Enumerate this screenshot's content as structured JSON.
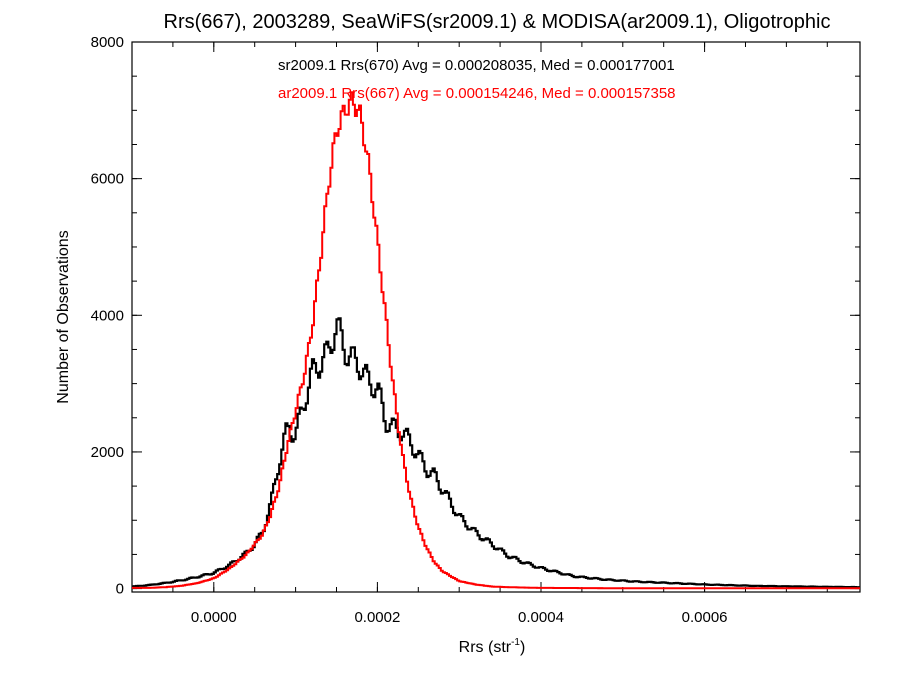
{
  "chart_data": {
    "type": "line",
    "title": "Rrs(667), 2003289, SeaWiFS(sr2009.1) & MODISA(ar2009.1), Oligotrophic",
    "xlabel": "Rrs (str",
    "xlabel_sup": "-1",
    "xlabel_end": ")",
    "ylabel": "Number of Observations",
    "xlim": [
      -0.0001,
      0.00079
    ],
    "ylim": [
      -50,
      8000
    ],
    "xticks": [
      0.0,
      0.0002,
      0.0004,
      0.0006
    ],
    "xtick_labels": [
      "0.0000",
      "0.0002",
      "0.0004",
      "0.0006"
    ],
    "yticks": [
      0,
      2000,
      4000,
      6000,
      8000
    ],
    "ytick_labels": [
      "0",
      "2000",
      "4000",
      "6000",
      "8000"
    ],
    "grid": false,
    "legend_position": "top-center",
    "series": [
      {
        "name": "sr2009.1 Rrs(670) Avg = 0.000208035, Med = 0.000177001",
        "color": "#000000",
        "points": [
          [
            -0.0001,
            30
          ],
          [
            -8e-05,
            50
          ],
          [
            -6e-05,
            80
          ],
          [
            -4e-05,
            120
          ],
          [
            -2e-05,
            170
          ],
          [
            0.0,
            230
          ],
          [
            2e-05,
            350
          ],
          [
            4e-05,
            520
          ],
          [
            5e-05,
            650
          ],
          [
            6e-05,
            830
          ],
          [
            7e-05,
            1250
          ],
          [
            8e-05,
            1850
          ],
          [
            9e-05,
            2350
          ],
          [
            0.0001,
            2250
          ],
          [
            0.00011,
            2700
          ],
          [
            0.00012,
            3150
          ],
          [
            0.00013,
            3300
          ],
          [
            0.00014,
            3450
          ],
          [
            0.00015,
            3870
          ],
          [
            0.00016,
            3500
          ],
          [
            0.00017,
            3350
          ],
          [
            0.00018,
            3250
          ],
          [
            0.00019,
            3000
          ],
          [
            0.0002,
            2950
          ],
          [
            0.00021,
            2450
          ],
          [
            0.00022,
            2350
          ],
          [
            0.00023,
            2300
          ],
          [
            0.00024,
            2150
          ],
          [
            0.00025,
            1950
          ],
          [
            0.00026,
            1750
          ],
          [
            0.00027,
            1650
          ],
          [
            0.00028,
            1450
          ],
          [
            0.0003,
            1050
          ],
          [
            0.00032,
            820
          ],
          [
            0.00034,
            650
          ],
          [
            0.00036,
            480
          ],
          [
            0.00038,
            380
          ],
          [
            0.0004,
            300
          ],
          [
            0.00044,
            180
          ],
          [
            0.00048,
            130
          ],
          [
            0.00052,
            100
          ],
          [
            0.00056,
            80
          ],
          [
            0.0006,
            60
          ],
          [
            0.00066,
            40
          ],
          [
            0.00072,
            30
          ],
          [
            0.00079,
            20
          ]
        ]
      },
      {
        "name": "ar2009.1 Rrs(667) Avg = 0.000154246, Med = 0.000157358",
        "color": "#ff0000",
        "points": [
          [
            -0.0001,
            10
          ],
          [
            -8e-05,
            10
          ],
          [
            -6e-05,
            20
          ],
          [
            -4e-05,
            40
          ],
          [
            -2e-05,
            80
          ],
          [
            0.0,
            150
          ],
          [
            2e-05,
            300
          ],
          [
            4e-05,
            500
          ],
          [
            6e-05,
            800
          ],
          [
            7e-05,
            1100
          ],
          [
            8e-05,
            1500
          ],
          [
            9e-05,
            2100
          ],
          [
            0.0001,
            2600
          ],
          [
            0.00011,
            3100
          ],
          [
            0.00012,
            3800
          ],
          [
            0.00013,
            4800
          ],
          [
            0.00014,
            5900
          ],
          [
            0.00015,
            6700
          ],
          [
            0.00016,
            7000
          ],
          [
            0.00017,
            7150
          ],
          [
            0.00018,
            6900
          ],
          [
            0.00019,
            6150
          ],
          [
            0.0002,
            5100
          ],
          [
            0.00021,
            4000
          ],
          [
            0.00022,
            2900
          ],
          [
            0.00023,
            2000
          ],
          [
            0.00024,
            1350
          ],
          [
            0.00025,
            900
          ],
          [
            0.00026,
            600
          ],
          [
            0.00027,
            380
          ],
          [
            0.00028,
            250
          ],
          [
            0.0003,
            110
          ],
          [
            0.00032,
            60
          ],
          [
            0.00034,
            30
          ],
          [
            0.00036,
            20
          ],
          [
            0.0004,
            10
          ],
          [
            0.0005,
            5
          ],
          [
            0.0006,
            5
          ],
          [
            0.00079,
            5
          ]
        ]
      }
    ]
  }
}
